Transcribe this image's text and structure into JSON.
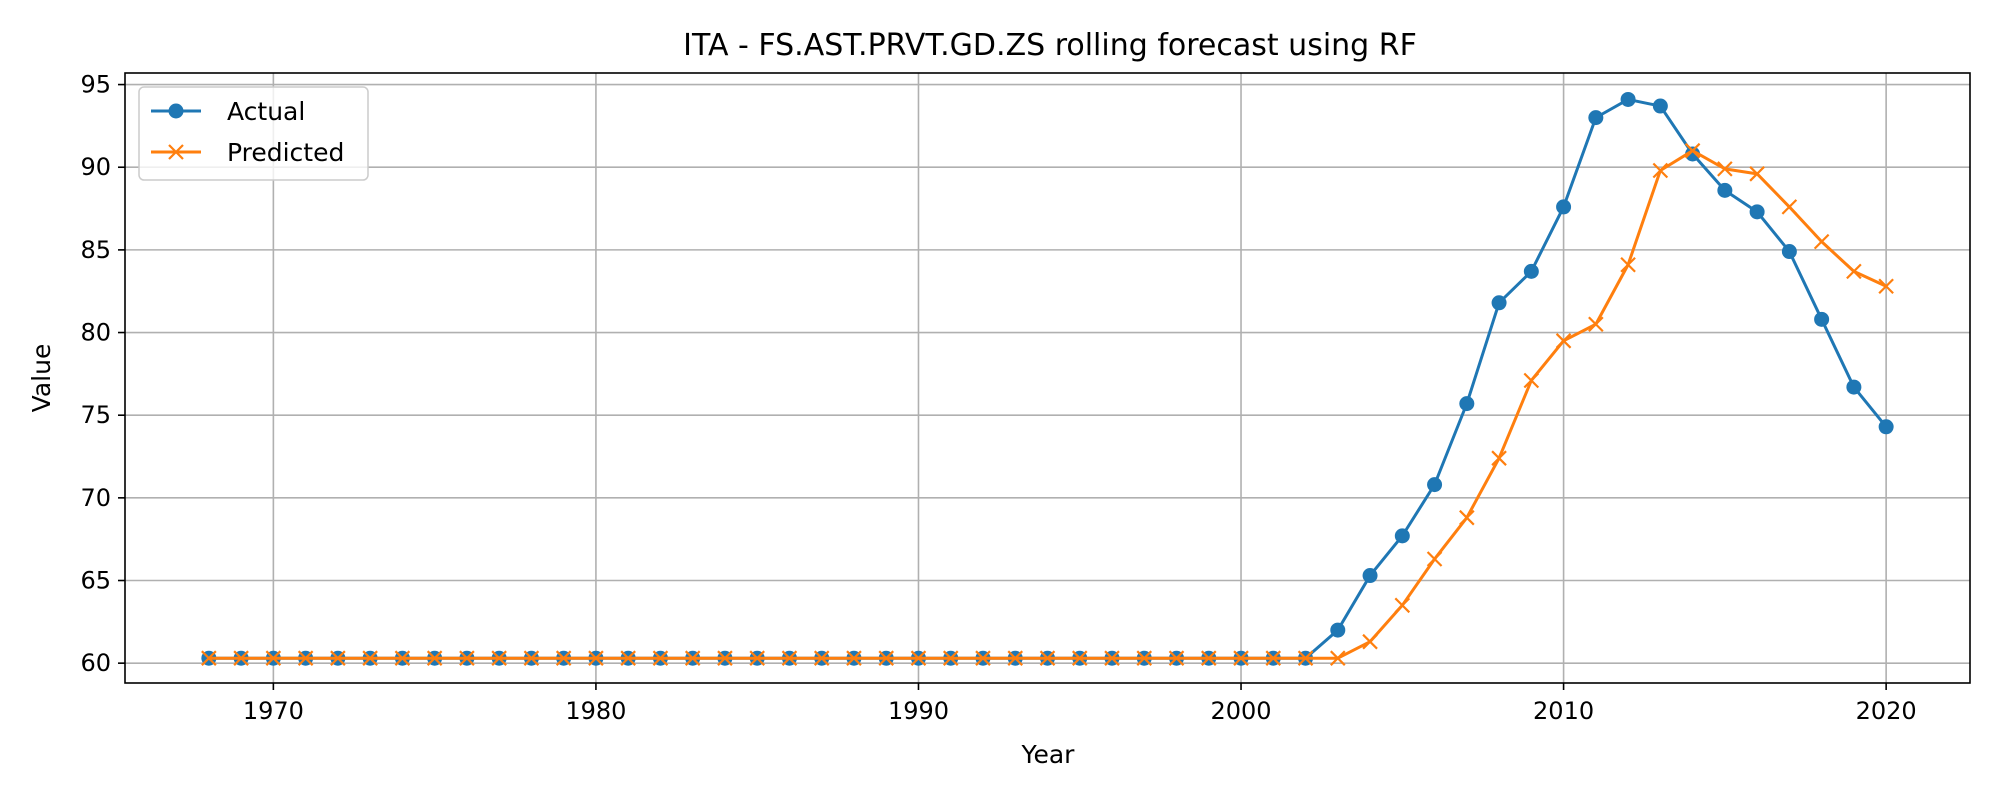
{
  "chart_data": {
    "type": "line",
    "title": "ITA - FS.AST.PRVT.GD.ZS rolling forecast using RF",
    "xlabel": "Year",
    "ylabel": "Value",
    "xlim": [
      1965.4,
      2022.6
    ],
    "ylim": [
      58.8,
      95.7
    ],
    "xticks": [
      1970,
      1980,
      1990,
      2000,
      2010,
      2020
    ],
    "yticks": [
      60,
      65,
      70,
      75,
      80,
      85,
      90,
      95
    ],
    "grid": true,
    "legend_position": "top-left",
    "x": [
      1968,
      1969,
      1970,
      1971,
      1972,
      1973,
      1974,
      1975,
      1976,
      1977,
      1978,
      1979,
      1980,
      1981,
      1982,
      1983,
      1984,
      1985,
      1986,
      1987,
      1988,
      1989,
      1990,
      1991,
      1992,
      1993,
      1994,
      1995,
      1996,
      1997,
      1998,
      1999,
      2000,
      2001,
      2002,
      2003,
      2004,
      2005,
      2006,
      2007,
      2008,
      2009,
      2010,
      2011,
      2012,
      2013,
      2014,
      2015,
      2016,
      2017,
      2018,
      2019,
      2020
    ],
    "series": [
      {
        "name": "Actual",
        "color": "#1f77b4",
        "marker": "circle",
        "values": [
          60.3,
          60.3,
          60.3,
          60.3,
          60.3,
          60.3,
          60.3,
          60.3,
          60.3,
          60.3,
          60.3,
          60.3,
          60.3,
          60.3,
          60.3,
          60.3,
          60.3,
          60.3,
          60.3,
          60.3,
          60.3,
          60.3,
          60.3,
          60.3,
          60.3,
          60.3,
          60.3,
          60.3,
          60.3,
          60.3,
          60.3,
          60.3,
          60.3,
          60.3,
          60.3,
          62.0,
          65.3,
          67.7,
          70.8,
          75.7,
          81.8,
          83.7,
          87.6,
          93.0,
          94.1,
          93.7,
          90.8,
          88.6,
          87.3,
          84.9,
          80.8,
          76.7,
          74.3
        ]
      },
      {
        "name": "Predicted",
        "color": "#ff7f0e",
        "marker": "x",
        "values": [
          60.3,
          60.3,
          60.3,
          60.3,
          60.3,
          60.3,
          60.3,
          60.3,
          60.3,
          60.3,
          60.3,
          60.3,
          60.3,
          60.3,
          60.3,
          60.3,
          60.3,
          60.3,
          60.3,
          60.3,
          60.3,
          60.3,
          60.3,
          60.3,
          60.3,
          60.3,
          60.3,
          60.3,
          60.3,
          60.3,
          60.3,
          60.3,
          60.3,
          60.3,
          60.3,
          60.3,
          61.3,
          63.5,
          66.3,
          68.8,
          72.4,
          77.1,
          79.5,
          80.5,
          84.1,
          89.8,
          91.0,
          89.9,
          89.6,
          87.6,
          85.5,
          83.7,
          82.8
        ]
      }
    ]
  }
}
